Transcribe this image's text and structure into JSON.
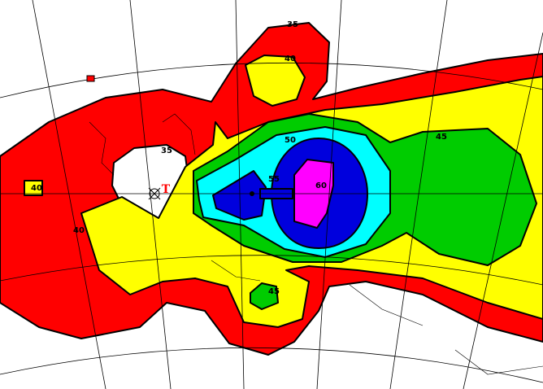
{
  "map": {
    "contour_labels": [
      "35",
      "40",
      "35",
      "40",
      "40",
      "45",
      "50",
      "55",
      "60",
      "45"
    ],
    "transmitter_label": "T"
  }
}
